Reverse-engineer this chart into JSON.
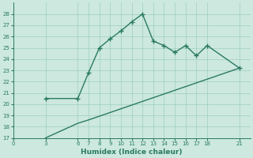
{
  "xlabel": "Humidex (Indice chaleur)",
  "line1_x": [
    3,
    6,
    7,
    8,
    9,
    10,
    11,
    12,
    13,
    14,
    15,
    16,
    17,
    18,
    21
  ],
  "line1_y": [
    20.5,
    20.5,
    22.8,
    25.0,
    25.8,
    26.5,
    27.3,
    28.0,
    25.6,
    25.2,
    24.6,
    25.2,
    24.3,
    25.2,
    23.2
  ],
  "line2_x": [
    3,
    6,
    7,
    21
  ],
  "line2_y": [
    17.0,
    18.3,
    18.6,
    23.2
  ],
  "line_color": "#2a7a62",
  "bg_color": "#cce8df",
  "grid_color": "#9fcfbe",
  "xlim": [
    0,
    22
  ],
  "ylim": [
    17,
    29
  ],
  "xticks": [
    0,
    3,
    6,
    7,
    8,
    9,
    10,
    11,
    12,
    13,
    14,
    15,
    16,
    17,
    18,
    21
  ],
  "yticks": [
    17,
    18,
    19,
    20,
    21,
    22,
    23,
    24,
    25,
    26,
    27,
    28
  ],
  "marker": "+",
  "markersize": 5,
  "markeredgewidth": 1.0,
  "linewidth": 1.0,
  "tick_fontsize": 5.0,
  "xlabel_fontsize": 6.5
}
